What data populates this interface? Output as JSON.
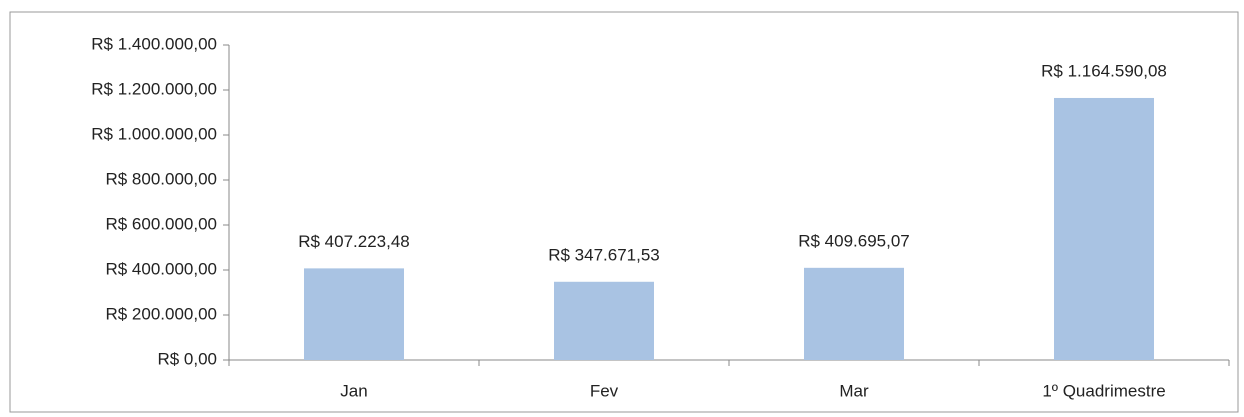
{
  "chart_data": {
    "type": "bar",
    "categories": [
      "Jan",
      "Fev",
      "Mar",
      "1º Quadrimestre"
    ],
    "values": [
      407223.48,
      347671.53,
      409695.07,
      1164590.08
    ],
    "value_labels": [
      "R$ 407.223,48",
      "R$ 347.671,53",
      "R$ 409.695,07",
      "R$ 1.164.590,08"
    ],
    "color": "#a9c3e3",
    "ylim": [
      0,
      1400000
    ],
    "yticks": [
      {
        "value": 0,
        "label": "R$ 0,00"
      },
      {
        "value": 200000,
        "label": "R$ 200.000,00"
      },
      {
        "value": 400000,
        "label": "R$ 400.000,00"
      },
      {
        "value": 600000,
        "label": "R$ 600.000,00"
      },
      {
        "value": 800000,
        "label": "R$ 800.000,00"
      },
      {
        "value": 1000000,
        "label": "R$ 1.000.000,00"
      },
      {
        "value": 1200000,
        "label": "R$ 1.200.000,00"
      },
      {
        "value": 1400000,
        "label": "R$ 1.400.000,00"
      }
    ],
    "grid": false
  }
}
